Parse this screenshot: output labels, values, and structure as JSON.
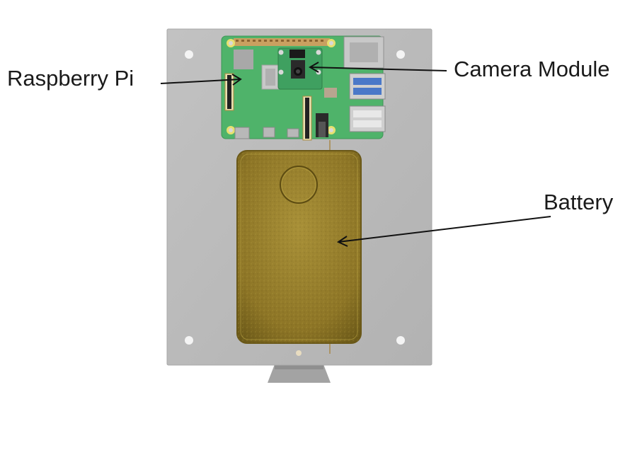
{
  "labels": {
    "raspberry_pi": "Raspberry Pi",
    "camera_module": "Camera Module",
    "battery": "Battery"
  },
  "colors": {
    "plate": "#b8b8b8",
    "pcb": "#4fb36a",
    "battery": "#9b8530",
    "leader": "#111111"
  }
}
